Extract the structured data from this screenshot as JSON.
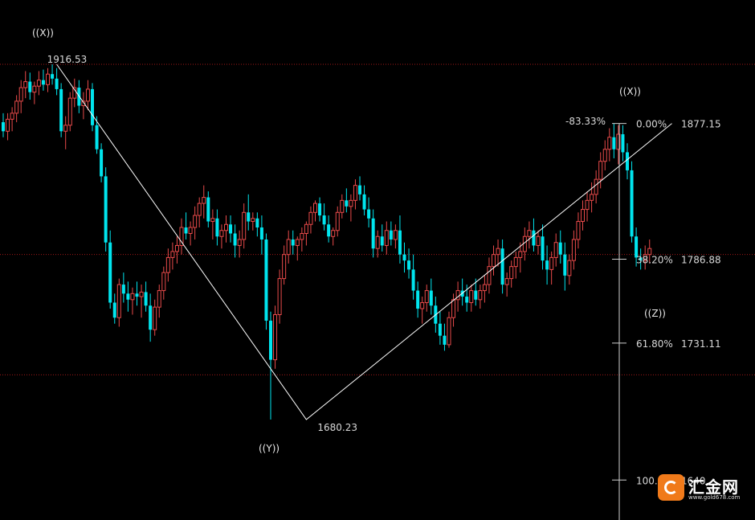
{
  "chart_data": {
    "type": "candlestick",
    "title": "",
    "xlabel": "",
    "ylabel": "",
    "ylim": [
      1630,
      1933
    ],
    "grid": false,
    "colors": {
      "up": "#e84a4a",
      "down": "#00e5ee",
      "wave_line": "#ffffff",
      "fib_axis": "#cfcfcf",
      "dotted": "#a01818"
    },
    "price_labels": {
      "high": "1916.53",
      "low": "1680.23"
    },
    "wave_labels": {
      "x_start": "((X))",
      "y_low": "((Y))",
      "x_end": "((X))",
      "z": "((Z))"
    },
    "fib_levels": [
      {
        "label": "0.00%",
        "value": "1877.15",
        "price": 1877.15
      },
      {
        "label": "38.20%",
        "value": "1786.88",
        "price": 1786.88
      },
      {
        "label": "61.80%",
        "value": "1731.11",
        "price": 1731.11
      },
      {
        "label": "100.0",
        "value": "1640.",
        "price": 1640.0
      }
    ],
    "fib_ratio": "-83.33%",
    "dotted_levels": [
      1916.53,
      1790.0,
      1710.0
    ],
    "wave_points": [
      {
        "bar": 12,
        "price": 1916.53
      },
      {
        "bar": 68,
        "price": 1680.23
      },
      {
        "bar": 150,
        "price": 1877.15
      }
    ],
    "candles": [
      [
        1878,
        1884,
        1868,
        1872
      ],
      [
        1872,
        1884,
        1866,
        1880
      ],
      [
        1880,
        1888,
        1872,
        1884
      ],
      [
        1884,
        1896,
        1878,
        1892
      ],
      [
        1892,
        1906,
        1884,
        1901
      ],
      [
        1901,
        1912,
        1894,
        1905
      ],
      [
        1905,
        1911,
        1893,
        1898
      ],
      [
        1898,
        1905,
        1890,
        1902
      ],
      [
        1902,
        1912,
        1896,
        1906
      ],
      [
        1906,
        1913,
        1899,
        1903
      ],
      [
        1903,
        1914,
        1898,
        1910
      ],
      [
        1910,
        1916.53,
        1903,
        1907
      ],
      [
        1907,
        1914,
        1896,
        1900
      ],
      [
        1900,
        1904,
        1868,
        1872
      ],
      [
        1872,
        1882,
        1860,
        1876
      ],
      [
        1876,
        1898,
        1872,
        1894
      ],
      [
        1894,
        1907,
        1888,
        1901
      ],
      [
        1901,
        1906,
        1884,
        1889
      ],
      [
        1889,
        1898,
        1880,
        1892
      ],
      [
        1892,
        1906,
        1886,
        1900
      ],
      [
        1900,
        1904,
        1872,
        1876
      ],
      [
        1876,
        1882,
        1857,
        1860
      ],
      [
        1860,
        1864,
        1838,
        1842
      ],
      [
        1842,
        1848,
        1792,
        1798
      ],
      [
        1798,
        1806,
        1754,
        1758
      ],
      [
        1758,
        1764,
        1744,
        1748
      ],
      [
        1748,
        1774,
        1742,
        1770
      ],
      [
        1770,
        1778,
        1758,
        1764
      ],
      [
        1764,
        1772,
        1752,
        1760
      ],
      [
        1760,
        1768,
        1750,
        1764
      ],
      [
        1764,
        1772,
        1756,
        1762
      ],
      [
        1762,
        1770,
        1748,
        1765
      ],
      [
        1765,
        1772,
        1752,
        1756
      ],
      [
        1756,
        1764,
        1732,
        1740
      ],
      [
        1740,
        1760,
        1736,
        1755
      ],
      [
        1755,
        1770,
        1748,
        1766
      ],
      [
        1766,
        1782,
        1760,
        1778
      ],
      [
        1778,
        1794,
        1772,
        1788
      ],
      [
        1788,
        1798,
        1780,
        1792
      ],
      [
        1792,
        1802,
        1784,
        1796
      ],
      [
        1796,
        1814,
        1790,
        1808
      ],
      [
        1808,
        1818,
        1800,
        1804
      ],
      [
        1804,
        1812,
        1796,
        1808
      ],
      [
        1808,
        1822,
        1800,
        1816
      ],
      [
        1816,
        1828,
        1808,
        1824
      ],
      [
        1824,
        1836,
        1814,
        1828
      ],
      [
        1828,
        1832,
        1808,
        1812
      ],
      [
        1812,
        1820,
        1800,
        1814
      ],
      [
        1814,
        1820,
        1796,
        1802
      ],
      [
        1802,
        1810,
        1794,
        1806
      ],
      [
        1806,
        1816,
        1798,
        1810
      ],
      [
        1810,
        1816,
        1798,
        1804
      ],
      [
        1804,
        1810,
        1788,
        1796
      ],
      [
        1796,
        1806,
        1788,
        1800
      ],
      [
        1800,
        1824,
        1794,
        1818
      ],
      [
        1818,
        1830,
        1806,
        1812
      ],
      [
        1812,
        1818,
        1806,
        1814
      ],
      [
        1814,
        1818,
        1802,
        1808
      ],
      [
        1808,
        1816,
        1790,
        1800
      ],
      [
        1800,
        1804,
        1740,
        1746
      ],
      [
        1746,
        1752,
        1680.23,
        1720
      ],
      [
        1720,
        1756,
        1714,
        1750
      ],
      [
        1750,
        1780,
        1744,
        1774
      ],
      [
        1774,
        1796,
        1770,
        1790
      ],
      [
        1790,
        1806,
        1784,
        1800
      ],
      [
        1800,
        1806,
        1790,
        1796
      ],
      [
        1796,
        1802,
        1786,
        1800
      ],
      [
        1800,
        1808,
        1792,
        1804
      ],
      [
        1804,
        1812,
        1796,
        1810
      ],
      [
        1810,
        1822,
        1804,
        1818
      ],
      [
        1818,
        1826,
        1812,
        1824
      ],
      [
        1824,
        1828,
        1812,
        1816
      ],
      [
        1816,
        1824,
        1806,
        1810
      ],
      [
        1810,
        1816,
        1798,
        1802
      ],
      [
        1802,
        1808,
        1796,
        1806
      ],
      [
        1806,
        1822,
        1802,
        1818
      ],
      [
        1818,
        1830,
        1814,
        1826
      ],
      [
        1826,
        1834,
        1818,
        1822
      ],
      [
        1822,
        1830,
        1812,
        1826
      ],
      [
        1826,
        1840,
        1820,
        1836
      ],
      [
        1836,
        1842,
        1826,
        1830
      ],
      [
        1830,
        1836,
        1816,
        1820
      ],
      [
        1820,
        1828,
        1808,
        1814
      ],
      [
        1814,
        1820,
        1788,
        1794
      ],
      [
        1794,
        1806,
        1788,
        1802
      ],
      [
        1802,
        1810,
        1792,
        1796
      ],
      [
        1796,
        1812,
        1790,
        1806
      ],
      [
        1806,
        1812,
        1796,
        1800
      ],
      [
        1800,
        1810,
        1794,
        1806
      ],
      [
        1806,
        1816,
        1784,
        1790
      ],
      [
        1790,
        1798,
        1778,
        1786
      ],
      [
        1786,
        1794,
        1774,
        1780
      ],
      [
        1780,
        1790,
        1760,
        1766
      ],
      [
        1766,
        1772,
        1748,
        1754
      ],
      [
        1754,
        1762,
        1744,
        1758
      ],
      [
        1758,
        1770,
        1752,
        1766
      ],
      [
        1766,
        1774,
        1750,
        1756
      ],
      [
        1756,
        1762,
        1738,
        1744
      ],
      [
        1744,
        1752,
        1730,
        1736
      ],
      [
        1736,
        1744,
        1726,
        1730
      ],
      [
        1730,
        1752,
        1728,
        1748
      ],
      [
        1748,
        1764,
        1742,
        1760
      ],
      [
        1760,
        1772,
        1752,
        1766
      ],
      [
        1766,
        1774,
        1756,
        1762
      ],
      [
        1762,
        1770,
        1752,
        1758
      ],
      [
        1758,
        1770,
        1752,
        1766
      ],
      [
        1766,
        1774,
        1756,
        1760
      ],
      [
        1760,
        1770,
        1754,
        1766
      ],
      [
        1766,
        1776,
        1758,
        1770
      ],
      [
        1770,
        1788,
        1764,
        1782
      ],
      [
        1782,
        1796,
        1776,
        1790
      ],
      [
        1790,
        1800,
        1782,
        1794
      ],
      [
        1794,
        1800,
        1764,
        1770
      ],
      [
        1770,
        1778,
        1762,
        1774
      ],
      [
        1774,
        1786,
        1768,
        1782
      ],
      [
        1782,
        1792,
        1774,
        1788
      ],
      [
        1788,
        1798,
        1778,
        1792
      ],
      [
        1792,
        1808,
        1786,
        1802
      ],
      [
        1802,
        1812,
        1794,
        1806
      ],
      [
        1806,
        1814,
        1792,
        1796
      ],
      [
        1796,
        1806,
        1790,
        1802
      ],
      [
        1802,
        1810,
        1780,
        1786
      ],
      [
        1786,
        1796,
        1770,
        1780
      ],
      [
        1780,
        1792,
        1770,
        1788
      ],
      [
        1788,
        1804,
        1782,
        1798
      ],
      [
        1798,
        1806,
        1784,
        1790
      ],
      [
        1790,
        1798,
        1766,
        1776
      ],
      [
        1776,
        1790,
        1770,
        1786
      ],
      [
        1786,
        1806,
        1780,
        1800
      ],
      [
        1800,
        1818,
        1794,
        1812
      ],
      [
        1812,
        1826,
        1806,
        1820
      ],
      [
        1820,
        1832,
        1812,
        1826
      ],
      [
        1826,
        1838,
        1818,
        1830
      ],
      [
        1830,
        1846,
        1824,
        1840
      ],
      [
        1840,
        1858,
        1834,
        1852
      ],
      [
        1852,
        1866,
        1846,
        1860
      ],
      [
        1860,
        1874,
        1852,
        1868
      ],
      [
        1868,
        1877.15,
        1854,
        1860
      ],
      [
        1860,
        1876,
        1850,
        1870
      ],
      [
        1870,
        1876,
        1852,
        1858
      ],
      [
        1858,
        1864,
        1840,
        1846
      ],
      [
        1846,
        1852,
        1798,
        1802
      ],
      [
        1802,
        1808,
        1782,
        1788
      ],
      [
        1788,
        1794,
        1780,
        1786
      ],
      [
        1786,
        1796,
        1780,
        1790
      ],
      [
        1790,
        1800,
        1784,
        1794
      ]
    ]
  },
  "logo": {
    "name": "汇金网",
    "url": "www.gold678.com"
  }
}
